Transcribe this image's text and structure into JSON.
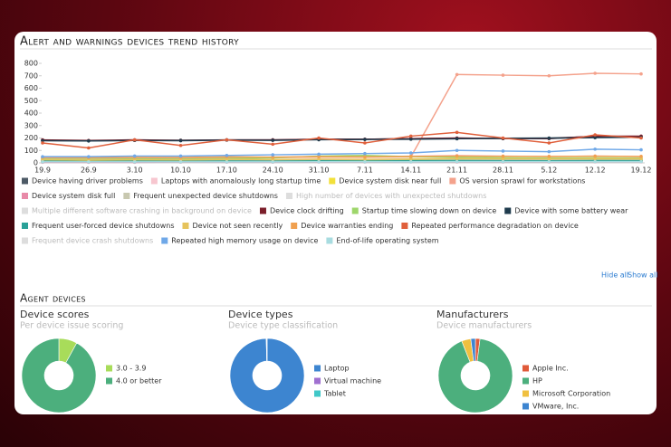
{
  "chart_data": [
    {
      "type": "line",
      "title": "Alert and warnings devices trend history",
      "categories": [
        "19.9",
        "26.9",
        "3.10",
        "10.10",
        "17.10",
        "24.10",
        "31.10",
        "7.11",
        "14.11",
        "21.11",
        "28.11",
        "5.12",
        "12.12",
        "19.12"
      ],
      "ylim": [
        0,
        800
      ],
      "yticks": [
        0,
        100,
        200,
        300,
        400,
        500,
        600,
        700,
        800
      ],
      "grid": false,
      "series": [
        {
          "name": "Device having driver problems",
          "color": "#4d5a66",
          "visible": true,
          "values": [
            180,
            178,
            182,
            182,
            185,
            185,
            190,
            190,
            195,
            198,
            198,
            200,
            210,
            212
          ]
        },
        {
          "name": "Laptops with anomalously long startup time",
          "color": "#f7c6cf",
          "visible": true,
          "values": [
            35,
            30,
            40,
            35,
            45,
            40,
            50,
            45,
            55,
            60,
            55,
            50,
            55,
            50
          ]
        },
        {
          "name": "Device system disk near full",
          "color": "#f2e03a",
          "visible": true,
          "values": [
            10,
            10,
            12,
            12,
            15,
            15,
            18,
            18,
            20,
            20,
            18,
            18,
            20,
            20
          ]
        },
        {
          "name": "OS version sprawl for workstations",
          "color": "#f4a28c",
          "visible": true,
          "values": [
            40,
            40,
            42,
            42,
            44,
            44,
            46,
            46,
            48,
            710,
            705,
            700,
            720,
            715
          ]
        },
        {
          "name": "Device system disk full",
          "color": "#e88aa8",
          "visible": true,
          "values": [
            5,
            5,
            5,
            6,
            6,
            6,
            7,
            7,
            8,
            8,
            8,
            8,
            9,
            9
          ]
        },
        {
          "name": "Frequent unexpected device shutdowns",
          "color": "#c8c8b0",
          "visible": true,
          "values": [
            20,
            18,
            22,
            20,
            25,
            22,
            28,
            25,
            30,
            30,
            28,
            26,
            30,
            28
          ]
        },
        {
          "name": "High number of devices with unexpected shutdowns",
          "color": "#dddddd",
          "visible": false
        },
        {
          "name": "Multiple different software crashing in background on device",
          "color": "#dddddd",
          "visible": false
        },
        {
          "name": "Device clock drifting",
          "color": "#7b1e2a",
          "visible": true,
          "values": [
            185,
            180,
            185,
            180,
            185,
            185,
            190,
            190,
            195,
            200,
            195,
            195,
            215,
            215
          ]
        },
        {
          "name": "Startup time slowing down on device",
          "color": "#9ed66b",
          "visible": true,
          "values": [
            30,
            28,
            32,
            30,
            35,
            40,
            55,
            60,
            50,
            45,
            40,
            38,
            40,
            38
          ]
        },
        {
          "name": "Device with some battery wear",
          "color": "#1f3b4d",
          "visible": true,
          "values": [
            178,
            176,
            180,
            178,
            183,
            181,
            186,
            188,
            190,
            194,
            196,
            198,
            203,
            206
          ]
        },
        {
          "name": "Frequent user-forced device shutdowns",
          "color": "#2aa198",
          "visible": true,
          "values": [
            15,
            12,
            15,
            13,
            15,
            14,
            16,
            15,
            17,
            18,
            17,
            16,
            18,
            17
          ]
        },
        {
          "name": "Device not seen recently",
          "color": "#e6c35c",
          "visible": true,
          "values": [
            25,
            22,
            25,
            24,
            28,
            26,
            30,
            28,
            32,
            35,
            33,
            32,
            34,
            33
          ]
        },
        {
          "name": "Device warranties ending",
          "color": "#f0a050",
          "visible": true,
          "values": [
            45,
            42,
            45,
            44,
            48,
            46,
            50,
            48,
            52,
            55,
            53,
            52,
            54,
            52
          ]
        },
        {
          "name": "Repeated performance degradation on device",
          "color": "#e0603c",
          "visible": true,
          "values": [
            160,
            120,
            185,
            140,
            185,
            150,
            200,
            160,
            215,
            245,
            200,
            160,
            225,
            200
          ]
        },
        {
          "name": "Frequent device crash shutdowns",
          "color": "#dddddd",
          "visible": false
        },
        {
          "name": "Repeated high memory usage on device",
          "color": "#6fa8e8",
          "visible": true,
          "values": [
            50,
            50,
            55,
            55,
            60,
            65,
            70,
            75,
            80,
            100,
            95,
            90,
            110,
            105
          ]
        },
        {
          "name": "End-of-life operating system",
          "color": "#a8dce0",
          "visible": true,
          "values": [
            8,
            8,
            8,
            8,
            8,
            8,
            9,
            9,
            9,
            10,
            10,
            10,
            10,
            10
          ]
        }
      ]
    },
    {
      "type": "pie",
      "title": "Device scores",
      "subtitle": "Per device issue scoring",
      "categories": [
        "3.0 - 3.9",
        "4.0 or better"
      ],
      "values": [
        8,
        92
      ],
      "colors": [
        "#a8dc5a",
        "#4caf7d"
      ]
    },
    {
      "type": "pie",
      "title": "Device types",
      "subtitle": "Device type classification",
      "categories": [
        "Laptop",
        "Virtual machine",
        "Tablet"
      ],
      "values": [
        99.6,
        0.2,
        0.2
      ],
      "colors": [
        "#3d85d0",
        "#a070d0",
        "#40c8c8"
      ]
    },
    {
      "type": "pie",
      "title": "Manufacturers",
      "subtitle": "Device manufacturers",
      "categories": [
        "Apple Inc.",
        "HP",
        "Microsoft Corporation",
        "VMware, Inc."
      ],
      "values": [
        2,
        92,
        4,
        2
      ],
      "colors": [
        "#e05a3a",
        "#4caf7d",
        "#f0c040",
        "#3d85d0"
      ]
    }
  ],
  "controls": {
    "hide_all": "Hide all",
    "show_all": "Show all"
  },
  "section_title": "Agent devices"
}
